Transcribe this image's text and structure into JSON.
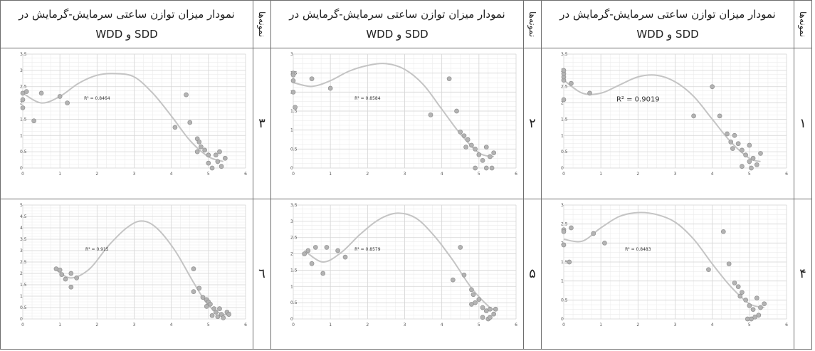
{
  "header": {
    "title_line1": "نمودار میزان توازن ساعتی سرمایش-گرمایش در",
    "title_line2": "SDD و WDD",
    "samples_label": "نمونه‌ها"
  },
  "rows": [
    {
      "numbers": [
        "۱",
        "۲",
        "۳"
      ]
    },
    {
      "numbers": [
        "۴",
        "۵",
        "٦"
      ]
    }
  ],
  "chart_data": [
    {
      "type": "scatter",
      "sample": "۱",
      "r2_label": "R² = 0.9019",
      "xlim": [
        0,
        6
      ],
      "ylim": [
        0,
        3.5
      ],
      "yticks": [
        "0",
        "0.5",
        "1",
        "1.5",
        "2",
        "2.5",
        "3",
        "3.5"
      ],
      "xticks": [
        "0",
        "1",
        "2",
        "3",
        "4",
        "5",
        "6"
      ],
      "points": [
        [
          0,
          2.1
        ],
        [
          0,
          2.7
        ],
        [
          0,
          2.8
        ],
        [
          0,
          2.9
        ],
        [
          0,
          3.0
        ],
        [
          0.2,
          2.6
        ],
        [
          0.7,
          2.3
        ],
        [
          3.5,
          1.6
        ],
        [
          4.0,
          2.5
        ],
        [
          4.2,
          1.6
        ],
        [
          4.4,
          1.05
        ],
        [
          4.5,
          0.8
        ],
        [
          4.55,
          0.6
        ],
        [
          4.6,
          1.0
        ],
        [
          4.7,
          0.75
        ],
        [
          4.8,
          0.55
        ],
        [
          4.9,
          0.4
        ],
        [
          5.0,
          0.2
        ],
        [
          4.8,
          0.05
        ],
        [
          5.0,
          0.7
        ],
        [
          5.1,
          0.3
        ],
        [
          5.2,
          0.1
        ],
        [
          5.3,
          0.45
        ],
        [
          5.05,
          0.0
        ]
      ],
      "trend": [
        [
          0,
          2.7
        ],
        [
          0.5,
          2.3
        ],
        [
          1,
          2.3
        ],
        [
          1.5,
          2.55
        ],
        [
          2,
          2.8
        ],
        [
          2.5,
          2.85
        ],
        [
          3,
          2.65
        ],
        [
          3.5,
          2.2
        ],
        [
          4,
          1.5
        ],
        [
          4.5,
          0.8
        ],
        [
          5,
          0.3
        ],
        [
          5.3,
          0.2
        ]
      ]
    },
    {
      "type": "scatter",
      "sample": "۲",
      "r2_label": "R² = 0.8584",
      "xlim": [
        0,
        6
      ],
      "ylim": [
        0,
        3
      ],
      "yticks": [
        "0",
        "0.5",
        "1",
        "1.5",
        "2",
        "2.5",
        "3"
      ],
      "xticks": [
        "0",
        "1",
        "2",
        "3",
        "4",
        "5",
        "6"
      ],
      "points": [
        [
          0,
          2.5
        ],
        [
          0,
          2.45
        ],
        [
          0,
          2.3
        ],
        [
          0,
          2.0
        ],
        [
          0.05,
          1.6
        ],
        [
          0.5,
          2.35
        ],
        [
          1.0,
          2.1
        ],
        [
          3.7,
          1.4
        ],
        [
          4.2,
          2.35
        ],
        [
          4.4,
          1.5
        ],
        [
          4.5,
          0.95
        ],
        [
          4.6,
          0.85
        ],
        [
          4.65,
          0.55
        ],
        [
          4.7,
          0.75
        ],
        [
          4.8,
          0.6
        ],
        [
          4.9,
          0.5
        ],
        [
          5.0,
          0.35
        ],
        [
          4.9,
          0.0
        ],
        [
          5.1,
          0.2
        ],
        [
          5.2,
          0.55
        ],
        [
          5.3,
          0.3
        ],
        [
          5.4,
          0.4
        ],
        [
          5.2,
          0.0
        ],
        [
          5.35,
          0.0
        ]
      ],
      "trend": [
        [
          0,
          2.25
        ],
        [
          0.5,
          2.15
        ],
        [
          1,
          2.3
        ],
        [
          1.5,
          2.55
        ],
        [
          2,
          2.7
        ],
        [
          2.5,
          2.75
        ],
        [
          3,
          2.6
        ],
        [
          3.5,
          2.2
        ],
        [
          4,
          1.55
        ],
        [
          4.5,
          0.9
        ],
        [
          5,
          0.4
        ],
        [
          5.4,
          0.3
        ]
      ]
    },
    {
      "type": "scatter",
      "sample": "۳",
      "r2_label": "R² = 0.8464",
      "xlim": [
        0,
        6
      ],
      "ylim": [
        0,
        3.5
      ],
      "yticks": [
        "0",
        "0.5",
        "1",
        "1.5",
        "2",
        "2.5",
        "3",
        "3.5"
      ],
      "xticks": [
        "0",
        "1",
        "2",
        "3",
        "4",
        "5",
        "6"
      ],
      "points": [
        [
          0,
          2.3
        ],
        [
          0,
          2.1
        ],
        [
          0,
          1.85
        ],
        [
          0.1,
          2.35
        ],
        [
          0.3,
          1.45
        ],
        [
          0.5,
          2.3
        ],
        [
          1.0,
          2.2
        ],
        [
          1.2,
          2.0
        ],
        [
          4.1,
          1.25
        ],
        [
          4.4,
          2.25
        ],
        [
          4.5,
          1.4
        ],
        [
          4.7,
          0.9
        ],
        [
          4.75,
          0.8
        ],
        [
          4.8,
          0.65
        ],
        [
          4.7,
          0.5
        ],
        [
          4.9,
          0.55
        ],
        [
          5.0,
          0.4
        ],
        [
          5.0,
          0.15
        ],
        [
          5.1,
          0.0
        ],
        [
          5.2,
          0.4
        ],
        [
          5.25,
          0.2
        ],
        [
          5.35,
          0.05
        ],
        [
          5.45,
          0.3
        ],
        [
          5.3,
          0.5
        ]
      ],
      "trend": [
        [
          0,
          2.3
        ],
        [
          0.5,
          2.0
        ],
        [
          1,
          2.2
        ],
        [
          1.5,
          2.6
        ],
        [
          2,
          2.85
        ],
        [
          2.5,
          2.9
        ],
        [
          3,
          2.8
        ],
        [
          3.5,
          2.3
        ],
        [
          4,
          1.6
        ],
        [
          4.5,
          0.85
        ],
        [
          5,
          0.35
        ],
        [
          5.4,
          0.2
        ]
      ]
    },
    {
      "type": "scatter",
      "sample": "۴",
      "r2_label": "R² = 0.8483",
      "xlim": [
        0,
        6
      ],
      "ylim": [
        0,
        3
      ],
      "yticks": [
        "0",
        "0.5",
        "1",
        "1.5",
        "2",
        "2.5",
        "3"
      ],
      "xticks": [
        "0",
        "1",
        "2",
        "3",
        "4",
        "5",
        "6"
      ],
      "points": [
        [
          0,
          2.35
        ],
        [
          0,
          2.3
        ],
        [
          0,
          1.95
        ],
        [
          0.15,
          1.5
        ],
        [
          0.2,
          2.4
        ],
        [
          0.8,
          2.25
        ],
        [
          1.1,
          2.0
        ],
        [
          3.9,
          1.3
        ],
        [
          4.3,
          2.3
        ],
        [
          4.45,
          1.45
        ],
        [
          4.6,
          0.95
        ],
        [
          4.7,
          0.85
        ],
        [
          4.75,
          0.6
        ],
        [
          4.8,
          0.7
        ],
        [
          4.9,
          0.5
        ],
        [
          5.0,
          0.35
        ],
        [
          4.95,
          0.0
        ],
        [
          5.1,
          0.25
        ],
        [
          5.2,
          0.55
        ],
        [
          5.25,
          0.1
        ],
        [
          5.3,
          0.3
        ],
        [
          5.4,
          0.4
        ],
        [
          5.05,
          0.0
        ],
        [
          5.15,
          0.05
        ]
      ],
      "trend": [
        [
          0,
          2.1
        ],
        [
          0.5,
          2.05
        ],
        [
          1,
          2.4
        ],
        [
          1.5,
          2.7
        ],
        [
          2,
          2.8
        ],
        [
          2.5,
          2.75
        ],
        [
          3,
          2.55
        ],
        [
          3.5,
          2.1
        ],
        [
          4,
          1.45
        ],
        [
          4.5,
          0.85
        ],
        [
          5,
          0.4
        ],
        [
          5.4,
          0.3
        ]
      ]
    },
    {
      "type": "scatter",
      "sample": "۵",
      "r2_label": "R² = 0.8579",
      "xlim": [
        0,
        6
      ],
      "ylim": [
        0,
        3.5
      ],
      "yticks": [
        "0",
        "0.5",
        "1",
        "1.5",
        "2",
        "2.5",
        "3",
        "3.5"
      ],
      "xticks": [
        "0",
        "1",
        "2",
        "3",
        "4",
        "5",
        "6"
      ],
      "points": [
        [
          0.3,
          2.0
        ],
        [
          0.4,
          2.1
        ],
        [
          0.5,
          1.7
        ],
        [
          0.6,
          2.2
        ],
        [
          0.8,
          1.4
        ],
        [
          0.9,
          2.2
        ],
        [
          1.2,
          2.1
        ],
        [
          1.4,
          1.9
        ],
        [
          4.3,
          1.2
        ],
        [
          4.5,
          2.2
        ],
        [
          4.6,
          1.35
        ],
        [
          4.8,
          0.9
        ],
        [
          4.85,
          0.75
        ],
        [
          4.9,
          0.5
        ],
        [
          4.8,
          0.45
        ],
        [
          5.0,
          0.6
        ],
        [
          5.1,
          0.35
        ],
        [
          5.1,
          0.05
        ],
        [
          5.2,
          0.25
        ],
        [
          5.25,
          0.0
        ],
        [
          5.3,
          0.3
        ],
        [
          5.4,
          0.15
        ],
        [
          5.45,
          0.3
        ],
        [
          5.3,
          0.05
        ]
      ],
      "trend": [
        [
          0.3,
          2.1
        ],
        [
          0.8,
          1.75
        ],
        [
          1.3,
          2.05
        ],
        [
          1.8,
          2.6
        ],
        [
          2.3,
          3.05
        ],
        [
          2.8,
          3.25
        ],
        [
          3.3,
          3.1
        ],
        [
          3.8,
          2.55
        ],
        [
          4.3,
          1.8
        ],
        [
          4.8,
          0.95
        ],
        [
          5.3,
          0.35
        ],
        [
          5.5,
          0.3
        ]
      ]
    },
    {
      "type": "scatter",
      "sample": "٦",
      "r2_label": "R² = 0.915",
      "xlim": [
        0,
        6
      ],
      "ylim": [
        0,
        5
      ],
      "yticks": [
        "0",
        "0.5",
        "1",
        "1.5",
        "2",
        "2.5",
        "3",
        "3.5",
        "4",
        "4.5",
        "5"
      ],
      "xticks": [
        "0",
        "1",
        "2",
        "3",
        "4",
        "5",
        "6"
      ],
      "points": [
        [
          0.9,
          2.2
        ],
        [
          1.0,
          2.15
        ],
        [
          1.05,
          1.95
        ],
        [
          1.15,
          1.75
        ],
        [
          1.3,
          1.4
        ],
        [
          1.3,
          2.0
        ],
        [
          1.45,
          1.8
        ],
        [
          4.6,
          1.2
        ],
        [
          4.6,
          2.2
        ],
        [
          4.75,
          1.35
        ],
        [
          4.85,
          0.95
        ],
        [
          4.95,
          0.85
        ],
        [
          4.95,
          0.55
        ],
        [
          5.0,
          0.75
        ],
        [
          5.05,
          0.65
        ],
        [
          5.15,
          0.45
        ],
        [
          5.1,
          0.15
        ],
        [
          5.2,
          0.3
        ],
        [
          5.3,
          0.45
        ],
        [
          5.35,
          0.2
        ],
        [
          5.4,
          0.05
        ],
        [
          5.5,
          0.3
        ],
        [
          5.55,
          0.2
        ],
        [
          5.25,
          0.1
        ]
      ],
      "trend": [
        [
          0.9,
          2.15
        ],
        [
          1.3,
          1.8
        ],
        [
          1.8,
          2.2
        ],
        [
          2.3,
          3.2
        ],
        [
          2.8,
          4.0
        ],
        [
          3.2,
          4.3
        ],
        [
          3.6,
          4.0
        ],
        [
          4.1,
          3.0
        ],
        [
          4.6,
          1.6
        ],
        [
          5.0,
          0.6
        ],
        [
          5.4,
          0.2
        ],
        [
          5.6,
          0.3
        ]
      ]
    }
  ]
}
